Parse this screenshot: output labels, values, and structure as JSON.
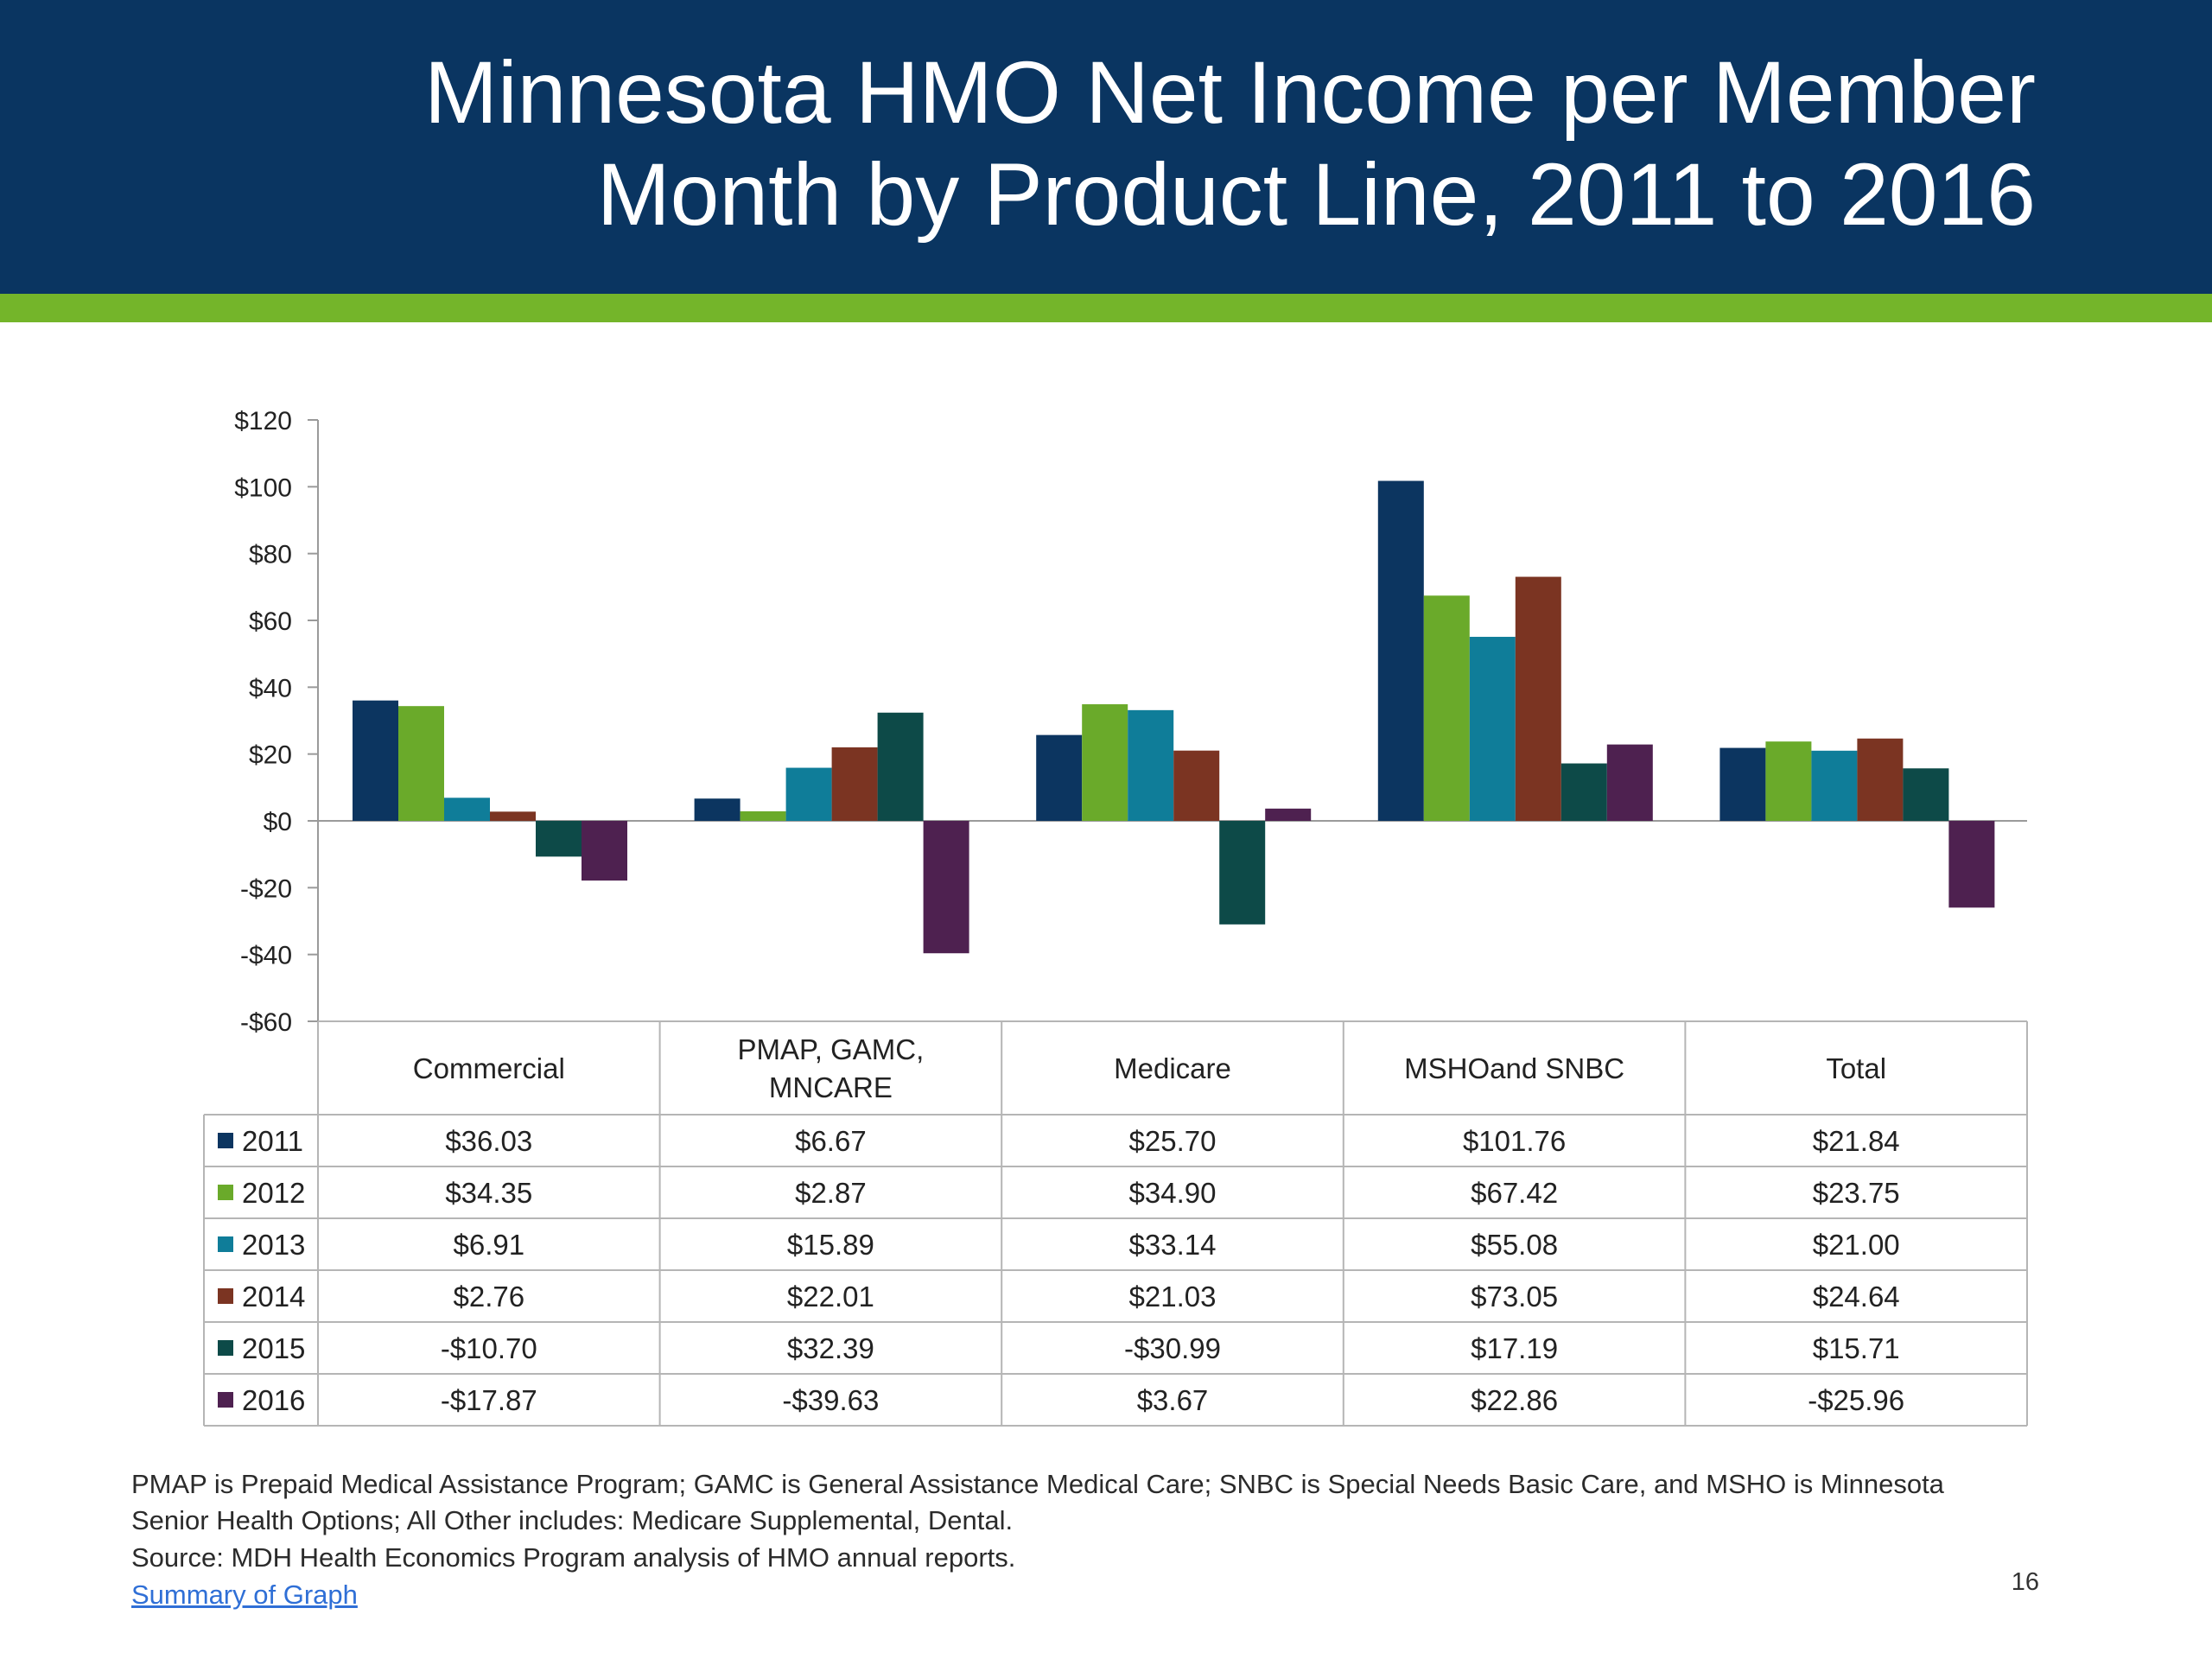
{
  "slide": {
    "title_line1": "Minnesota HMO Net Income per Member",
    "title_line2": "Month by Product Line, 2011 to 2016",
    "header_color": "#0a3561",
    "accent_color": "#74b52a",
    "footnote_line1": "PMAP is Prepaid Medical Assistance Program; GAMC is General Assistance Medical Care; SNBC is Special Needs Basic Care, and MSHO is Minnesota",
    "footnote_line2": "Senior Health Options; All Other includes: Medicare Supplemental, Dental.",
    "source": "Source: MDH Health Economics Program analysis of HMO annual reports.",
    "link_text": "Summary of Graph",
    "page_number": "16"
  },
  "chart_data": {
    "type": "bar",
    "title": "Minnesota HMO Net Income per Member Month by Product Line, 2011 to 2016",
    "xlabel": "",
    "ylabel": "",
    "ylim": [
      -60,
      120
    ],
    "y_ticks": [
      120,
      100,
      80,
      60,
      40,
      20,
      0,
      -20,
      -40,
      -60
    ],
    "y_tick_labels": [
      "$120",
      "$100",
      "$80",
      "$60",
      "$40",
      "$20",
      "$0",
      "-$20",
      "-$40",
      "-$60"
    ],
    "categories": [
      [
        "Commercial"
      ],
      [
        "PMAP, GAMC,",
        "MNCARE"
      ],
      [
        "Medicare"
      ],
      [
        "MSHOand SNBC"
      ],
      [
        "Total"
      ]
    ],
    "series": [
      {
        "name": "2011",
        "color": "#0c3560",
        "values": [
          36.03,
          6.67,
          25.7,
          101.76,
          21.84
        ],
        "labels": [
          "$36.03",
          "$6.67",
          "$25.70",
          "$101.76",
          "$21.84"
        ]
      },
      {
        "name": "2012",
        "color": "#6aaa2a",
        "values": [
          34.35,
          2.87,
          34.9,
          67.42,
          23.75
        ],
        "labels": [
          "$34.35",
          "$2.87",
          "$34.90",
          "$67.42",
          "$23.75"
        ]
      },
      {
        "name": "2013",
        "color": "#0f7d99",
        "values": [
          6.91,
          15.89,
          33.14,
          55.08,
          21.0
        ],
        "labels": [
          "$6.91",
          "$15.89",
          "$33.14",
          "$55.08",
          "$21.00"
        ]
      },
      {
        "name": "2014",
        "color": "#7b3422",
        "values": [
          2.76,
          22.01,
          21.03,
          73.05,
          24.64
        ],
        "labels": [
          "$2.76",
          "$22.01",
          "$21.03",
          "$73.05",
          "$24.64"
        ]
      },
      {
        "name": "2015",
        "color": "#0d4a48",
        "values": [
          -10.7,
          32.39,
          -30.99,
          17.19,
          15.71
        ],
        "labels": [
          "-$10.70",
          "$32.39",
          "-$30.99",
          "$17.19",
          "$15.71"
        ]
      },
      {
        "name": "2016",
        "color": "#4e2150",
        "values": [
          -17.87,
          -39.63,
          3.67,
          22.86,
          -25.96
        ],
        "labels": [
          "-$17.87",
          "-$39.63",
          "$3.67",
          "$22.86",
          "-$25.96"
        ]
      }
    ],
    "data_table": true,
    "grid": false
  }
}
